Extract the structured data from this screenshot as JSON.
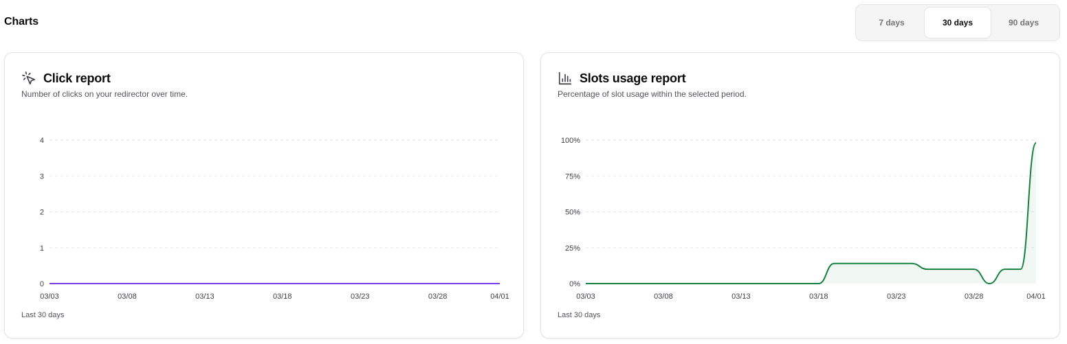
{
  "page_title": "Charts",
  "range_options": [
    {
      "label": "7 days",
      "active": false
    },
    {
      "label": "30 days",
      "active": true
    },
    {
      "label": "90 days",
      "active": false
    }
  ],
  "click_card": {
    "title": "Click report",
    "description": "Number of clicks on your redirector over time.",
    "footer": "Last 30 days",
    "icon": "cursor-click-icon",
    "color": "#7c3aed"
  },
  "slots_card": {
    "title": "Slots usage report",
    "description": "Percentage of slot usage within the selected period.",
    "footer": "Last 30 days",
    "icon": "bar-chart-icon",
    "color": "#15803d"
  },
  "chart_data": [
    {
      "type": "line",
      "x_ticks": [
        "03/03",
        "03/08",
        "03/13",
        "03/18",
        "03/23",
        "03/28",
        "04/01"
      ],
      "y_ticks": [
        "0",
        "1",
        "2",
        "3",
        "4"
      ],
      "ylim": [
        0,
        4
      ],
      "xlim": [
        0,
        29
      ],
      "grid": true,
      "series": [
        {
          "x": [
            0,
            29
          ],
          "y": [
            0,
            0
          ]
        }
      ]
    },
    {
      "type": "area",
      "x_ticks": [
        "03/03",
        "03/08",
        "03/13",
        "03/18",
        "03/23",
        "03/28",
        "04/01"
      ],
      "y_ticks": [
        "0%",
        "25%",
        "50%",
        "75%",
        "100%"
      ],
      "ylim": [
        0,
        100
      ],
      "xlim": [
        0,
        29
      ],
      "grid": true,
      "series": [
        {
          "x": [
            0,
            15,
            16,
            17,
            18,
            19,
            20,
            21,
            22,
            23,
            24,
            25,
            26,
            27,
            28,
            29
          ],
          "y": [
            0,
            0,
            14,
            14,
            14,
            14,
            14,
            14,
            10,
            10,
            10,
            10,
            0,
            10,
            10,
            98
          ]
        }
      ]
    }
  ]
}
